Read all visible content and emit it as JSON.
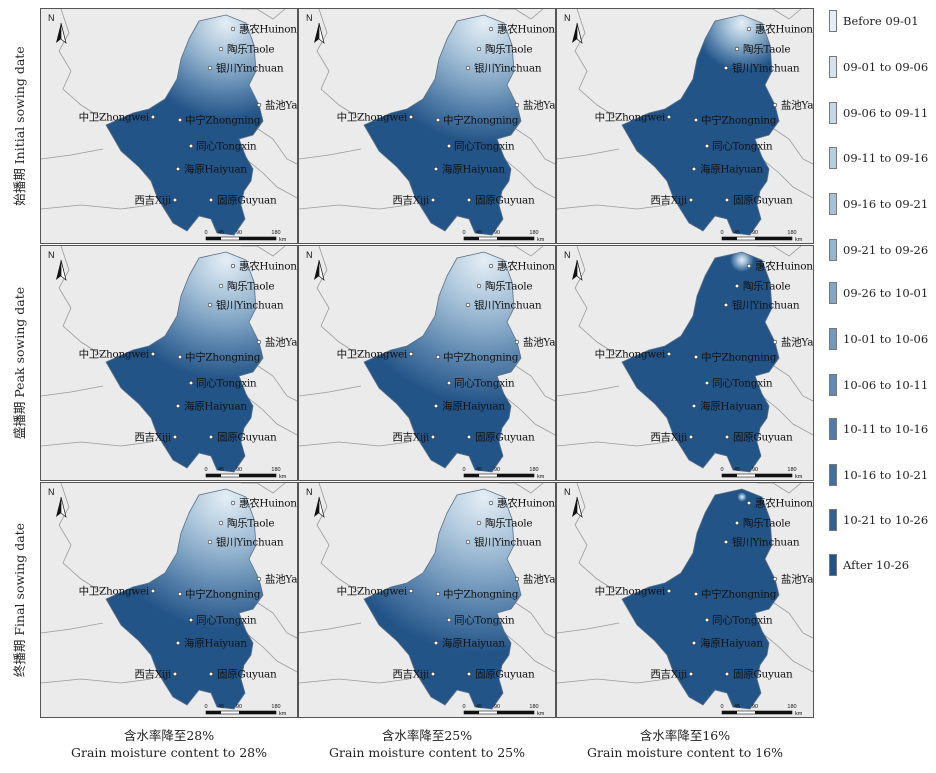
{
  "rows": [
    {
      "label": "始播期 Initial sowing date"
    },
    {
      "label": "盛播期 Peak sowing date"
    },
    {
      "label": "终播期 Final sowing date"
    }
  ],
  "columns": [
    {
      "label_cn": "含水率降至28%",
      "label_en": "Grain moisture content to 28%"
    },
    {
      "label_cn": "含水率降至25%",
      "label_en": "Grain moisture content to 25%"
    },
    {
      "label_cn": "含水率降至16%",
      "label_en": "Grain moisture content to 16%"
    }
  ],
  "cities": [
    {
      "name": "惠农Huinong"
    },
    {
      "name": "陶乐Taole"
    },
    {
      "name": "银川Yinchuan"
    },
    {
      "name": "盐池Yanchi"
    },
    {
      "name": "中卫Zhongwei"
    },
    {
      "name": "中宁Zhongning"
    },
    {
      "name": "同心Tongxin"
    },
    {
      "name": "海原Haiyuan"
    },
    {
      "name": "西吉Xiji"
    },
    {
      "name": "固原Guyuan"
    }
  ],
  "map": {
    "north": "N",
    "scale_labels": [
      "0",
      "45",
      "90",
      "180"
    ],
    "scale_unit": "km"
  },
  "legend": [
    {
      "label": "Before 09-01",
      "color": "#e4eef6"
    },
    {
      "label": "09-01 to 09-06",
      "color": "#d5e3ee"
    },
    {
      "label": "09-06 to 09-11",
      "color": "#c6d8e7"
    },
    {
      "label": "09-11 to 09-16",
      "color": "#b6cde0"
    },
    {
      "label": "09-16 to 09-21",
      "color": "#a6c1d8"
    },
    {
      "label": "09-21 to 09-26",
      "color": "#95b4cf"
    },
    {
      "label": "09-26 to 10-01",
      "color": "#84a7c6"
    },
    {
      "label": "10-01 to 10-06",
      "color": "#7399bc"
    },
    {
      "label": "10-06 to 10-11",
      "color": "#628bb2"
    },
    {
      "label": "10-11 to 10-16",
      "color": "#517ca8"
    },
    {
      "label": "10-16 to 10-21",
      "color": "#426f9d"
    },
    {
      "label": "10-21 to 10-26",
      "color": "#336292"
    },
    {
      "label": "After 10-26",
      "color": "#235488"
    }
  ],
  "panel_levels": [
    [
      0.4,
      0.5,
      0.2
    ],
    [
      0.5,
      0.6,
      0.05
    ],
    [
      0.55,
      0.65,
      0.02
    ]
  ]
}
